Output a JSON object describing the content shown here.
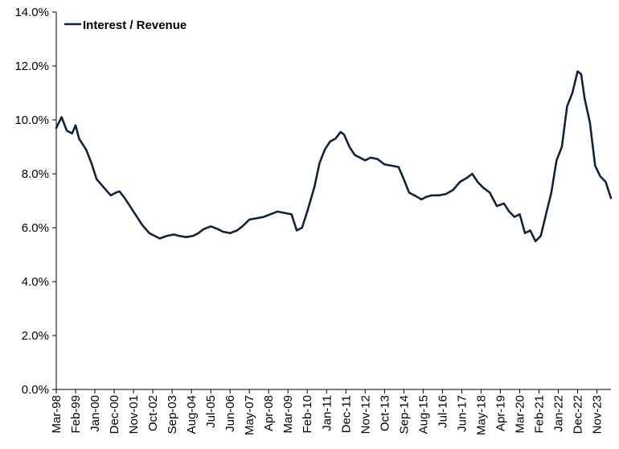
{
  "chart_data": {
    "type": "line",
    "title": "",
    "xlabel": "",
    "ylabel": "",
    "legend": {
      "position": "top-left",
      "entries": [
        "Interest / Revenue"
      ]
    },
    "grid": false,
    "ylim": [
      0,
      14
    ],
    "xlim": [
      "1998-03",
      "2024-07"
    ],
    "y_ticks": [
      "0.0%",
      "2.0%",
      "4.0%",
      "6.0%",
      "8.0%",
      "10.0%",
      "12.0%",
      "14.0%"
    ],
    "x_ticks": [
      "Mar-98",
      "Feb-99",
      "Jan-00",
      "Dec-00",
      "Nov-01",
      "Oct-02",
      "Sep-03",
      "Aug-04",
      "Jul-05",
      "Jun-06",
      "May-07",
      "Apr-08",
      "Mar-09",
      "Feb-10",
      "Jan-11",
      "Dec-11",
      "Nov-12",
      "Oct-13",
      "Sep-14",
      "Aug-15",
      "Jul-16",
      "Jun-17",
      "May-18",
      "Apr-19",
      "Mar-20",
      "Feb-21",
      "Jan-22",
      "Dec-22",
      "Nov-23"
    ],
    "colors": {
      "series": "#14213d",
      "axis": "#000000"
    },
    "series": [
      {
        "name": "Interest / Revenue",
        "x": [
          "1998-03",
          "1998-06",
          "1998-09",
          "1998-12",
          "1999-02",
          "1999-04",
          "1999-08",
          "1999-11",
          "2000-02",
          "2000-06",
          "2000-10",
          "2001-01",
          "2001-03",
          "2001-06",
          "2001-09",
          "2002-01",
          "2002-04",
          "2002-08",
          "2002-11",
          "2003-02",
          "2003-06",
          "2003-10",
          "2004-01",
          "2004-05",
          "2004-09",
          "2004-12",
          "2005-03",
          "2005-07",
          "2005-11",
          "2006-02",
          "2006-06",
          "2006-10",
          "2007-01",
          "2007-05",
          "2007-09",
          "2008-01",
          "2008-05",
          "2008-09",
          "2009-01",
          "2009-05",
          "2009-08",
          "2009-11",
          "2010-02",
          "2010-06",
          "2010-09",
          "2010-12",
          "2011-03",
          "2011-06",
          "2011-09",
          "2011-11",
          "2012-02",
          "2012-05",
          "2012-08",
          "2012-11",
          "2013-02",
          "2013-06",
          "2013-10",
          "2014-02",
          "2014-06",
          "2014-09",
          "2014-12",
          "2015-03",
          "2015-07",
          "2015-10",
          "2016-01",
          "2016-05",
          "2016-09",
          "2017-01",
          "2017-05",
          "2017-09",
          "2017-12",
          "2018-03",
          "2018-06",
          "2018-10",
          "2019-02",
          "2019-06",
          "2019-09",
          "2019-12",
          "2020-03",
          "2020-06",
          "2020-09",
          "2020-12",
          "2021-03",
          "2021-06",
          "2021-09",
          "2021-12",
          "2022-03",
          "2022-06",
          "2022-09",
          "2022-12",
          "2023-02",
          "2023-04",
          "2023-07",
          "2023-10",
          "2024-01",
          "2024-04",
          "2024-07"
        ],
        "values": [
          9.7,
          10.1,
          9.6,
          9.5,
          9.8,
          9.3,
          8.9,
          8.4,
          7.8,
          7.5,
          7.2,
          7.3,
          7.35,
          7.1,
          6.8,
          6.4,
          6.1,
          5.8,
          5.7,
          5.6,
          5.7,
          5.75,
          5.7,
          5.65,
          5.7,
          5.8,
          5.95,
          6.05,
          5.95,
          5.85,
          5.8,
          5.9,
          6.05,
          6.3,
          6.35,
          6.4,
          6.5,
          6.6,
          6.55,
          6.5,
          5.9,
          6.0,
          6.6,
          7.5,
          8.4,
          8.9,
          9.2,
          9.3,
          9.55,
          9.45,
          9.0,
          8.7,
          8.6,
          8.5,
          8.6,
          8.55,
          8.35,
          8.3,
          8.25,
          7.8,
          7.3,
          7.2,
          7.05,
          7.15,
          7.2,
          7.2,
          7.25,
          7.4,
          7.7,
          7.85,
          8.0,
          7.7,
          7.5,
          7.3,
          6.8,
          6.9,
          6.6,
          6.4,
          6.5,
          5.8,
          5.9,
          5.5,
          5.7,
          6.5,
          7.3,
          8.5,
          9.0,
          10.5,
          11.0,
          11.8,
          11.7,
          10.8,
          9.9,
          8.3,
          7.9,
          7.7,
          7.1
        ]
      }
    ]
  }
}
